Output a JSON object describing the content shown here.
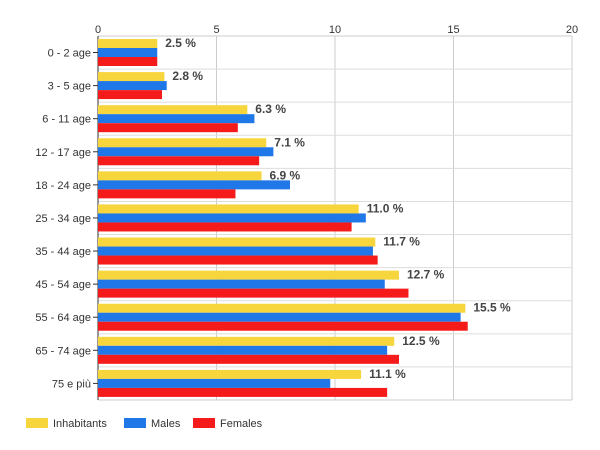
{
  "chart_data": {
    "type": "bar",
    "orientation": "horizontal",
    "categories": [
      "0 - 2 age",
      "3 - 5 age",
      "6 - 11 age",
      "12 - 17 age",
      "18 - 24 age",
      "25 - 34 age",
      "35 - 44 age",
      "45 - 54 age",
      "55 - 64 age",
      "65 - 74 age",
      "75 e più"
    ],
    "series": [
      {
        "name": "Inhabitants",
        "color": "#f7d53c",
        "values": [
          2.5,
          2.8,
          6.3,
          7.1,
          6.9,
          11.0,
          11.7,
          12.7,
          15.5,
          12.5,
          11.1
        ]
      },
      {
        "name": "Males",
        "color": "#1f77e8",
        "values": [
          2.5,
          2.9,
          6.6,
          7.4,
          8.1,
          11.3,
          11.6,
          12.1,
          15.3,
          12.2,
          9.8
        ]
      },
      {
        "name": "Females",
        "color": "#f51b1b",
        "values": [
          2.5,
          2.7,
          5.9,
          6.8,
          5.8,
          10.7,
          11.8,
          13.1,
          15.6,
          12.7,
          12.2
        ]
      }
    ],
    "data_labels": [
      "2.5 %",
      "2.8 %",
      "6.3 %",
      "7.1 %",
      "6.9 %",
      "11.0 %",
      "11.7 %",
      "12.7 %",
      "15.5 %",
      "12.5 %",
      "11.1 %"
    ],
    "x_ticks": [
      0,
      5,
      10,
      15,
      20
    ],
    "xlim": [
      0,
      20
    ],
    "title": "",
    "xlabel": "",
    "ylabel": "",
    "grid": true,
    "legend_position": "bottom-left"
  }
}
